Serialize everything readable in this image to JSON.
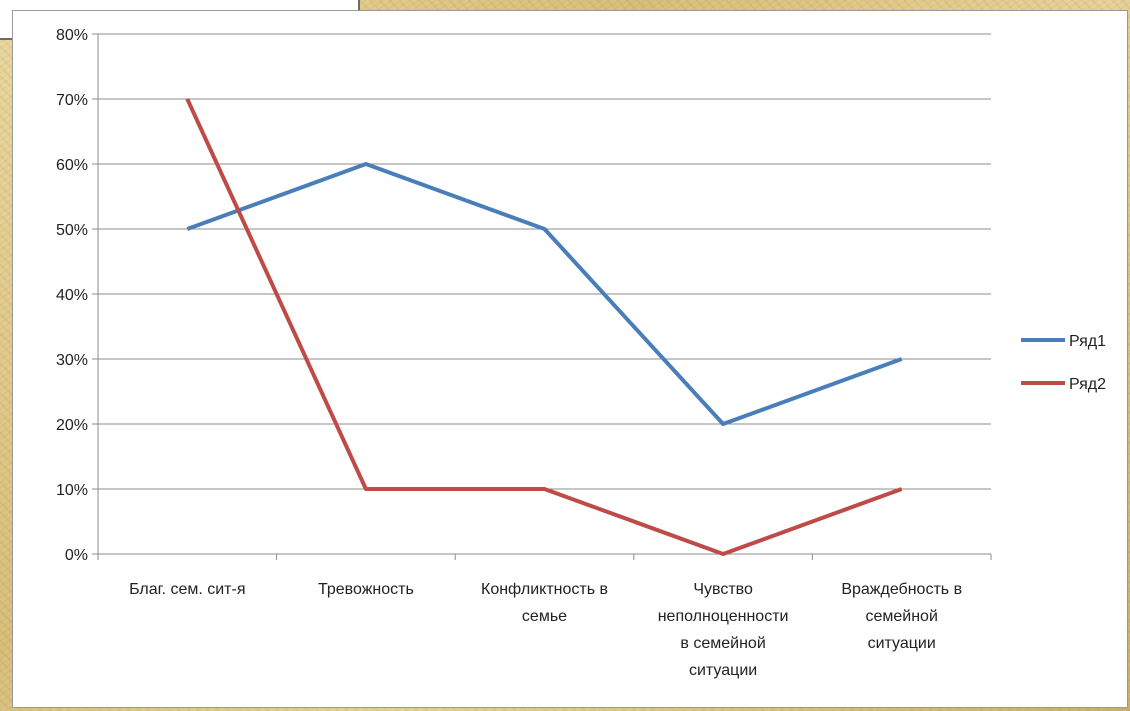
{
  "chart_data": {
    "type": "line",
    "title": "",
    "xlabel": "",
    "ylabel": "",
    "ylim": [
      0,
      80
    ],
    "y_ticks": [
      "0%",
      "10%",
      "20%",
      "30%",
      "40%",
      "50%",
      "60%",
      "70%",
      "80%"
    ],
    "categories": [
      [
        "Благ. сем. сит-я"
      ],
      [
        "Тревожность"
      ],
      [
        "Конфликтность в",
        "семье"
      ],
      [
        "Чувство",
        "неполноценности",
        "в семейной",
        "ситуации"
      ],
      [
        "Враждебность в",
        "семейной",
        "ситуации"
      ]
    ],
    "series": [
      {
        "name": "Ряд1",
        "values": [
          50,
          60,
          50,
          20,
          30
        ],
        "color": "#4a7ebb"
      },
      {
        "name": "Ряд2",
        "values": [
          70,
          10,
          10,
          0,
          10
        ],
        "color": "#be4b48"
      }
    ],
    "grid": true,
    "legend": "right"
  }
}
